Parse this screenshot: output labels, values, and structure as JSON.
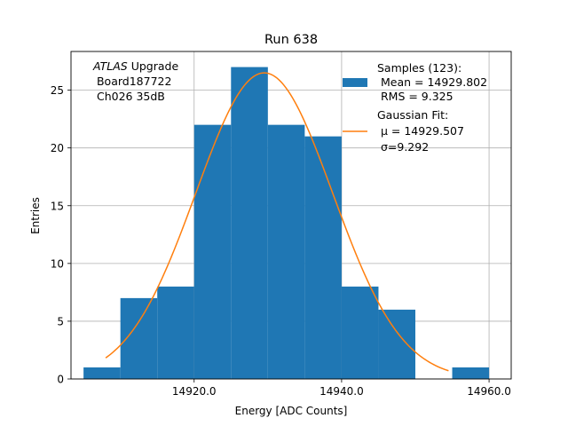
{
  "chart_data": {
    "type": "bar",
    "title": "Run 638",
    "xlabel": "Energy [ADC Counts]",
    "ylabel": "Entries",
    "xlim": [
      14903.3,
      14963.0
    ],
    "ylim": [
      0,
      28.35
    ],
    "xticks": [
      14920,
      14940,
      14960
    ],
    "xtick_labels": [
      "14920.0",
      "14940.0",
      "14960.0"
    ],
    "yticks": [
      0,
      5,
      10,
      15,
      20,
      25
    ],
    "grid": true,
    "bins": [
      {
        "x0": 14905,
        "x1": 14910,
        "count": 1
      },
      {
        "x0": 14910,
        "x1": 14915,
        "count": 7
      },
      {
        "x0": 14915,
        "x1": 14920,
        "count": 8
      },
      {
        "x0": 14920,
        "x1": 14925,
        "count": 22
      },
      {
        "x0": 14925,
        "x1": 14930,
        "count": 27
      },
      {
        "x0": 14930,
        "x1": 14935,
        "count": 22
      },
      {
        "x0": 14935,
        "x1": 14940,
        "count": 21
      },
      {
        "x0": 14940,
        "x1": 14945,
        "count": 8
      },
      {
        "x0": 14945,
        "x1": 14950,
        "count": 6
      },
      {
        "x0": 14950,
        "x1": 14955,
        "count": 0
      },
      {
        "x0": 14955,
        "x1": 14960,
        "count": 1
      }
    ],
    "fit": {
      "name": "Gaussian Fit",
      "mu": 14929.507,
      "sigma": 9.292,
      "amplitude": 26.5,
      "x_range": [
        14908,
        14954.5
      ]
    },
    "colors": {
      "histogram": "#1f77b4",
      "fit": "#ff7f0e",
      "grid": "#b0b0b0"
    },
    "legend_position": "top-right",
    "annotation": {
      "line1_italic": "ATLAS",
      "line1_rest": " Upgrade",
      "line2": " Board187722",
      "line3": " Ch026 35dB"
    },
    "legend": {
      "samples_line1": "Samples (123):",
      "samples_line2": " Mean = 14929.802",
      "samples_line3": " RMS = 9.325",
      "fit_line1": "Gaussian Fit:",
      "fit_line2": " μ = 14929.507",
      "fit_line3": " σ=9.292"
    }
  }
}
